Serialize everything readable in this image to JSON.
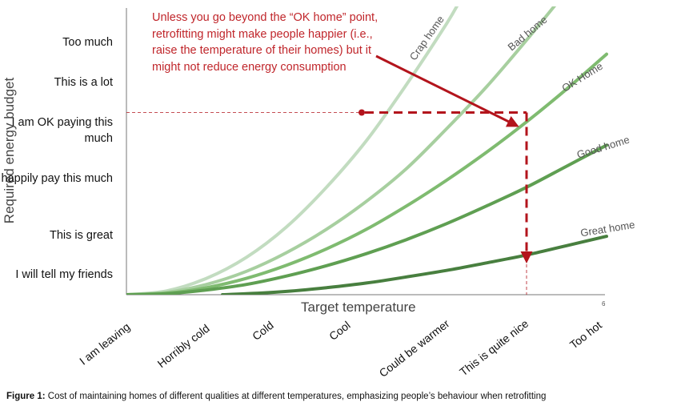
{
  "chart_data": {
    "type": "line",
    "xlabel": "Target temperature",
    "ylabel": "Required energy budget",
    "x_categories": [
      "I am leaving",
      "Horribly cold",
      "Cold",
      "Cool",
      "Could be warmer",
      "This is quite nice",
      "Too hot"
    ],
    "y_categories": [
      "I will tell my friends",
      "This is great",
      "I happily pay this much",
      "I am OK paying this much",
      "This is a lot",
      "Too much"
    ],
    "xlim": [
      0,
      6
    ],
    "ylim": [
      0,
      6
    ],
    "series": [
      {
        "name": "Crap home",
        "color": "#c2dcc0",
        "points": [
          [
            0,
            0
          ],
          [
            0.5,
            0.08
          ],
          [
            1,
            0.35
          ],
          [
            1.5,
            0.8
          ],
          [
            2,
            1.45
          ],
          [
            2.5,
            2.3
          ],
          [
            3,
            3.3
          ],
          [
            3.5,
            4.5
          ],
          [
            4,
            5.8
          ],
          [
            4.2,
            6.4
          ]
        ]
      },
      {
        "name": "Bad home",
        "color": "#a7cf9f",
        "points": [
          [
            0,
            0
          ],
          [
            0.5,
            0.05
          ],
          [
            1,
            0.22
          ],
          [
            1.5,
            0.5
          ],
          [
            2,
            0.9
          ],
          [
            2.5,
            1.4
          ],
          [
            3,
            2.0
          ],
          [
            3.5,
            2.7
          ],
          [
            4,
            3.55
          ],
          [
            4.5,
            4.45
          ],
          [
            5,
            5.45
          ],
          [
            5.5,
            6.5
          ]
        ]
      },
      {
        "name": "OK Home",
        "color": "#7fbb70",
        "points": [
          [
            0,
            0
          ],
          [
            0.5,
            0.03
          ],
          [
            1,
            0.15
          ],
          [
            1.5,
            0.35
          ],
          [
            2,
            0.63
          ],
          [
            2.5,
            0.98
          ],
          [
            3,
            1.4
          ],
          [
            3.5,
            1.9
          ],
          [
            4,
            2.45
          ],
          [
            4.5,
            3.05
          ],
          [
            5,
            3.7
          ],
          [
            5.5,
            4.4
          ],
          [
            6,
            5.15
          ]
        ]
      },
      {
        "name": "Good home",
        "color": "#5f9f52",
        "points": [
          [
            0,
            0
          ],
          [
            0.5,
            0.02
          ],
          [
            1,
            0.1
          ],
          [
            1.5,
            0.22
          ],
          [
            2,
            0.4
          ],
          [
            2.5,
            0.62
          ],
          [
            3,
            0.88
          ],
          [
            3.5,
            1.18
          ],
          [
            4,
            1.52
          ],
          [
            4.5,
            1.9
          ],
          [
            5,
            2.3
          ],
          [
            5.5,
            2.75
          ],
          [
            6,
            3.2
          ]
        ]
      },
      {
        "name": "Great home",
        "color": "#487f3f",
        "points": [
          [
            1.2,
            0
          ],
          [
            1.5,
            0.02
          ],
          [
            2,
            0.07
          ],
          [
            2.5,
            0.15
          ],
          [
            3,
            0.25
          ],
          [
            3.5,
            0.38
          ],
          [
            4,
            0.52
          ],
          [
            4.5,
            0.68
          ],
          [
            5,
            0.85
          ],
          [
            5.5,
            1.05
          ],
          [
            6,
            1.25
          ]
        ]
      }
    ],
    "annotation": {
      "text": "Unless you go beyond the “OK home” point, retrofitting might make people happier (i.e., raise the temperature of their homes) but it might not reduce energy consumption",
      "color": "#c0262b"
    },
    "guide": {
      "y_level": 3.9,
      "x_level": 5
    }
  },
  "page": {
    "number": "6"
  },
  "caption": {
    "label": "Figure 1:",
    "text": " Cost of maintaining homes of different qualities at different temperatures, emphasizing people’s behaviour when retrofitting"
  }
}
